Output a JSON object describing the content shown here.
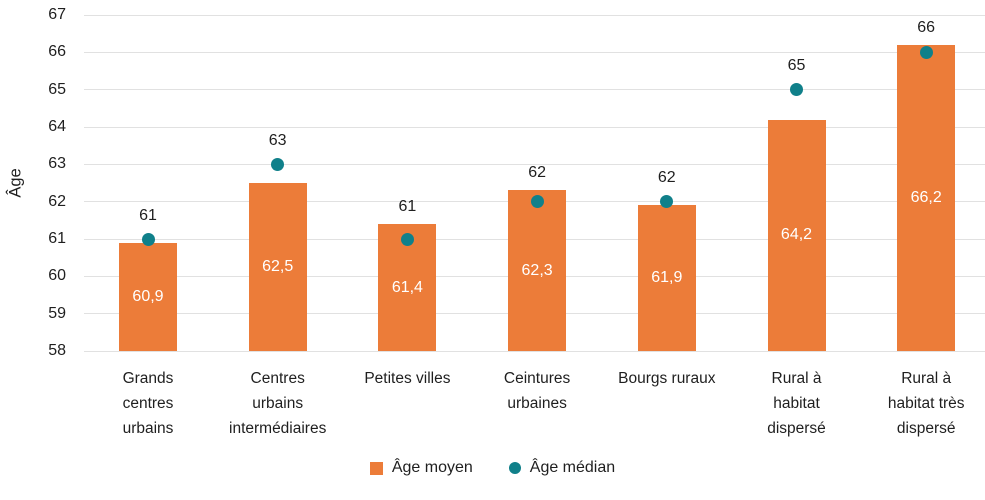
{
  "chart_data": {
    "type": "bar",
    "title": "",
    "xlabel": "",
    "ylabel": "Âge",
    "ylim": [
      58,
      67
    ],
    "ytick_step": 1,
    "grid": "horizontal",
    "legend_position": "bottom",
    "categories": [
      "Grands centres urbains",
      "Centres urbains intermédiaires",
      "Petites villes",
      "Ceintures urbaines",
      "Bourgs ruraux",
      "Rural à habitat dispersé",
      "Rural à habitat très dispersé"
    ],
    "category_label_lines": [
      [
        "Grands",
        "centres",
        "urbains"
      ],
      [
        "Centres",
        "urbains",
        "intermédiaires"
      ],
      [
        "Petites villes"
      ],
      [
        "Ceintures",
        "urbaines"
      ],
      [
        "Bourgs ruraux"
      ],
      [
        "Rural à",
        "habitat",
        "dispersé"
      ],
      [
        "Rural à",
        "habitat très",
        "dispersé"
      ]
    ],
    "series": [
      {
        "name": "Âge moyen",
        "mark": "bar",
        "color": "#EC7C39",
        "values": [
          60.9,
          62.5,
          61.4,
          62.3,
          61.9,
          64.2,
          66.2
        ],
        "value_labels": [
          "60,9",
          "62,5",
          "61,4",
          "62,3",
          "61,9",
          "64,2",
          "66,2"
        ]
      },
      {
        "name": "Âge médian",
        "mark": "point",
        "color": "#10808A",
        "values": [
          61,
          63,
          61,
          62,
          62,
          65,
          66
        ],
        "value_labels": [
          "61",
          "63",
          "61",
          "62",
          "62",
          "65",
          "66"
        ]
      }
    ],
    "colors": {
      "bar": "#EC7C39",
      "point": "#10808A",
      "grid": "#E1E1E1",
      "text": "#1F1F1F",
      "bar_value_text": "#FFFFFF",
      "background": "#FFFFFF"
    }
  }
}
